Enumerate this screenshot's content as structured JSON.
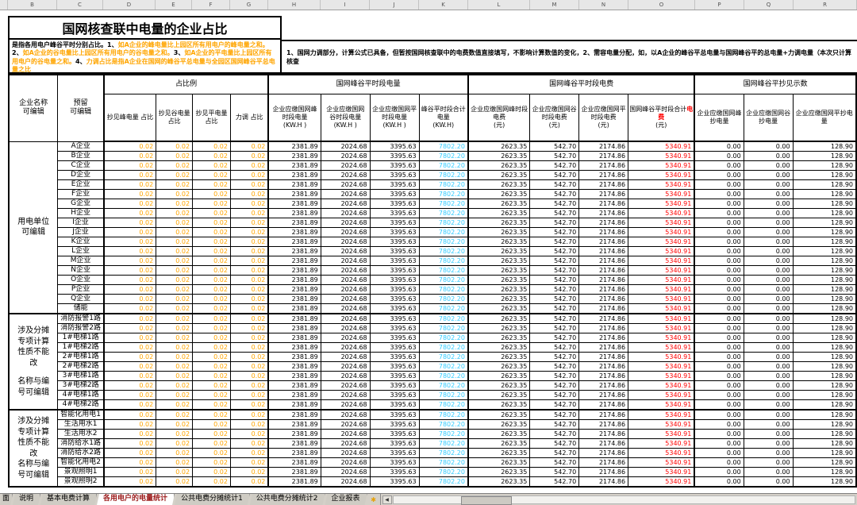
{
  "title": "国网核查联中电量的企业占比",
  "column_strip_letters": [
    "B",
    "C",
    "D",
    "E",
    "F",
    "G",
    "H",
    "I",
    "J",
    "K",
    "L",
    "M",
    "N",
    "O",
    "P",
    "Q",
    "R"
  ],
  "notes": {
    "left_segments": [
      {
        "text": "是指各用电户峰谷平时分别占比。1、",
        "orange": false
      },
      {
        "text": "如A企业的峰电量比上园区所有用电户的峰电量之和。",
        "orange": true
      },
      {
        "text": "2、",
        "orange": false
      },
      {
        "text": "如A企业的谷电量比上园区所有用电户的谷电量之和。",
        "orange": true
      },
      {
        "text": "3、",
        "orange": false
      },
      {
        "text": "如A企业的平电量比上园区所有用电户的谷电量之和。",
        "orange": true
      },
      {
        "text": "4、",
        "orange": false
      },
      {
        "text": "力调占比是指A企业在国网的峰谷平总电量与全园区国网峰谷平总电量之比",
        "orange": true
      }
    ],
    "right": "1、国网力调部分，计算公式已具备，但暂按国网核查联中的电费数值直接填写，不影响计算数值的变化，2、需容电量分配，如，以A企业的峰谷平总电量与国网峰谷平的总电量+力调电量（本次只计算核查"
  },
  "table": {
    "corner_headers": [
      "企业名称\n可编辑",
      "预留\n可编辑"
    ],
    "column_groups": [
      {
        "label": "占比例",
        "span": 4
      },
      {
        "label": "国网峰谷平时段电量",
        "span": 4
      },
      {
        "label": "国网峰谷平时段电费",
        "span": 4
      },
      {
        "label": "国网峰谷平抄见示数",
        "span": 3
      }
    ],
    "sub_headers": [
      {
        "t": "抄见峰电量 占比"
      },
      {
        "t": "抄见谷电量 占比"
      },
      {
        "t": "抄见平电量 占比"
      },
      {
        "t": "力调 占比"
      },
      {
        "t": "企业应缴国网峰时段电量\n(KW.H )"
      },
      {
        "t": "企业应缴国网\n谷时段电量\n(KW.H )"
      },
      {
        "t": "企业应缴国网平时段电量\n(KW.H )"
      },
      {
        "t": "峰谷平时段合计电量\n(KW.H)"
      },
      {
        "t": "企业应缴国网峰时段电费\n(元)"
      },
      {
        "t": "企业应缴国网谷时段电费\n(元)"
      },
      {
        "t": "企业应缴国网平时段电费\n(元)"
      },
      {
        "pre": "国网峰谷平时段合计",
        "red": "电费",
        "post": "\n(元)"
      },
      {
        "t": "企业应缴国网峰抄电量"
      },
      {
        "t": "企业应缴国网谷抄电量"
      },
      {
        "t": "企业应缴国网平抄电量"
      }
    ],
    "row_groups": [
      {
        "label_lines": [
          "用电单位",
          "可编辑"
        ],
        "rows": [
          "A企业",
          "B企业",
          "C企业",
          "D企业",
          "E企业",
          "F企业",
          "G企业",
          "H企业",
          "I企业",
          "J企业",
          "K企业",
          "L企业",
          "M企业",
          "N企业",
          "O企业",
          "P企业",
          "Q企业",
          "储能"
        ]
      },
      {
        "label_lines": [
          "涉及分摊专项计算性质不能改",
          "",
          "名称与编号可编辑"
        ],
        "rows": [
          "消防报警1路",
          "消防报警2路",
          "1#电梯1路",
          "1#电梯2路",
          "2#电梯1路",
          "2#电梯2路",
          "3#电梯1路",
          "3#电梯2路",
          "4#电梯1路",
          "4#电梯2路"
        ]
      },
      {
        "label_lines": [
          "涉及分摊专项计算性质不能改",
          "名称与编号可编辑"
        ],
        "rows": [
          "智能化用电1",
          "生活用水1",
          "生活用水2",
          "消防给水1路",
          "消防给水2路",
          "智能化用电2",
          "景观照明1",
          "景观照明2"
        ]
      }
    ],
    "values_per_row": [
      {
        "v": "0.02",
        "c": "orange"
      },
      {
        "v": "0.02",
        "c": "orange"
      },
      {
        "v": "0.02",
        "c": "orange"
      },
      {
        "v": "0.02",
        "c": "orange"
      },
      {
        "v": "2381.89",
        "c": "black"
      },
      {
        "v": "2024.68",
        "c": "black"
      },
      {
        "v": "3395.63",
        "c": "black"
      },
      {
        "v": "7802.20",
        "c": "blue"
      },
      {
        "v": "2623.35",
        "c": "black"
      },
      {
        "v": "542.70",
        "c": "black"
      },
      {
        "v": "2174.86",
        "c": "black"
      },
      {
        "v": "5340.91",
        "c": "red"
      },
      {
        "v": "0.00",
        "c": "black"
      },
      {
        "v": "0.00",
        "c": "black"
      },
      {
        "v": "128.90",
        "c": "black"
      }
    ]
  },
  "tab_bar": {
    "tabs": [
      {
        "label": "面",
        "partial": true,
        "active": false
      },
      {
        "label": "说明",
        "partial": false,
        "active": false
      },
      {
        "label": "基本电费计算",
        "partial": false,
        "active": false
      },
      {
        "label": "各用电户的电量统计",
        "partial": false,
        "active": true
      },
      {
        "label": "公共电费分摊统计1",
        "partial": false,
        "active": false
      },
      {
        "label": "公共电费分摊统计2",
        "partial": false,
        "active": false
      },
      {
        "label": "企业报表",
        "partial": false,
        "active": false
      }
    ],
    "new_sheet_icon": "✱",
    "scroll_left_arrow": "◀"
  },
  "colors": {
    "ratio_orange": "#FFA500",
    "total_kwh_blue": "#33CCFF",
    "total_fee_red": "#FF0000",
    "tabbar_grey": "#D4D0C8"
  }
}
